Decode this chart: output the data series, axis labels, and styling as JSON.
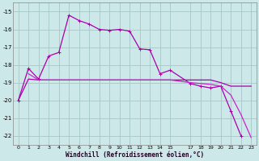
{
  "xlabel": "Windchill (Refroidissement éolien,°C)",
  "bg_color": "#cce8e8",
  "grid_color": "#aacccc",
  "line_color1": "#aa00aa",
  "line_color2": "#cc22cc",
  "xlim": [
    -0.5,
    23.5
  ],
  "ylim": [
    -22.5,
    -14.5
  ],
  "yticks": [
    -15,
    -16,
    -17,
    -18,
    -19,
    -20,
    -21,
    -22
  ],
  "xticks": [
    0,
    1,
    2,
    3,
    4,
    5,
    6,
    7,
    8,
    9,
    10,
    11,
    12,
    13,
    14,
    15,
    17,
    18,
    19,
    20,
    21,
    22,
    23
  ],
  "s1_x": [
    0,
    1,
    2,
    3,
    4,
    5,
    6,
    7,
    8,
    9,
    10,
    11,
    12,
    13,
    14,
    15,
    17,
    18,
    19,
    20,
    21,
    22
  ],
  "s1_y": [
    -20.0,
    -18.2,
    -18.8,
    -17.5,
    -17.3,
    -15.2,
    -15.5,
    -15.7,
    -16.0,
    -16.05,
    -16.0,
    -16.1,
    -17.1,
    -17.15,
    -18.5,
    -18.3,
    -19.05,
    -19.2,
    -19.3,
    -19.2,
    -20.6,
    -22.0
  ],
  "s2_x": [
    0,
    1,
    2,
    3,
    4,
    5,
    6,
    7,
    8,
    9,
    10,
    11,
    12,
    13,
    14,
    15,
    17,
    18,
    19,
    20,
    21,
    22,
    23
  ],
  "s2_y": [
    -20.0,
    -18.8,
    -18.85,
    -18.85,
    -18.85,
    -18.85,
    -18.85,
    -18.85,
    -18.85,
    -18.85,
    -18.85,
    -18.85,
    -18.85,
    -18.85,
    -18.85,
    -18.85,
    -18.85,
    -18.85,
    -18.85,
    -19.0,
    -19.2,
    -19.2,
    -19.2
  ],
  "s3_x": [
    1,
    2,
    3,
    4,
    5,
    6,
    7,
    8,
    9,
    10,
    11,
    12,
    13,
    14,
    15,
    17,
    18,
    19,
    20,
    21,
    22,
    23
  ],
  "s3_y": [
    -18.5,
    -18.85,
    -18.85,
    -18.85,
    -18.85,
    -18.85,
    -18.85,
    -18.85,
    -18.85,
    -18.85,
    -18.85,
    -18.85,
    -18.85,
    -18.85,
    -18.85,
    -19.0,
    -19.05,
    -19.1,
    -19.2,
    -19.7,
    -20.8,
    -22.1
  ]
}
